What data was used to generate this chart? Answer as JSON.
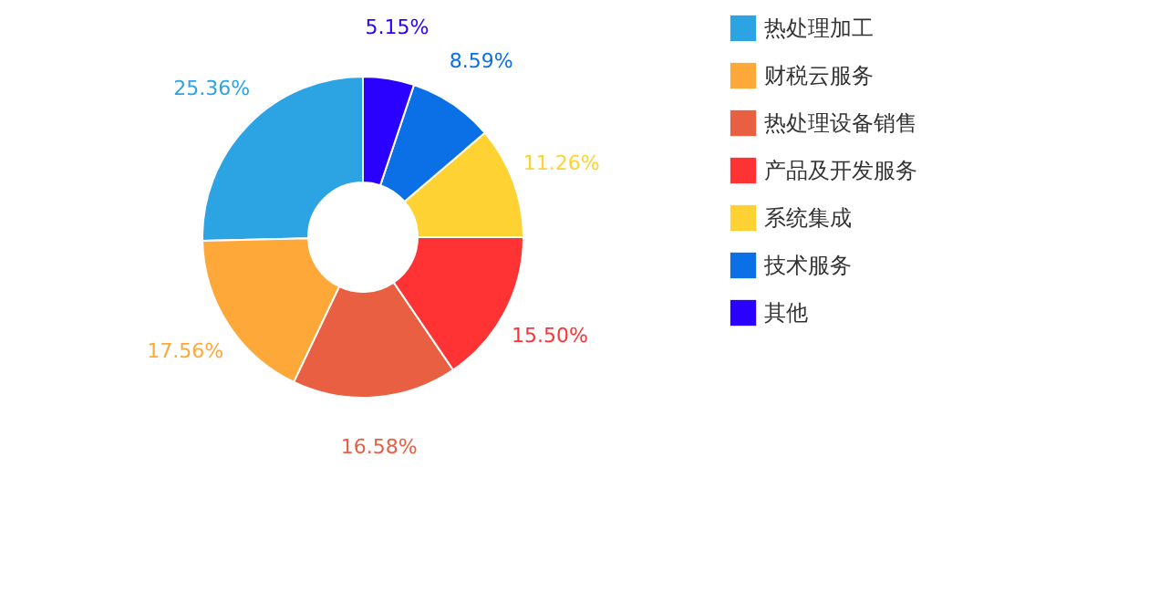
{
  "chart_data": {
    "type": "donut",
    "categories": [
      "热处理加工",
      "财税云服务",
      "热处理设备销售",
      "产品及开发服务",
      "系统集成",
      "技术服务",
      "其他"
    ],
    "values": [
      25.36,
      17.56,
      16.58,
      15.5,
      11.26,
      8.59,
      5.15
    ],
    "value_labels": [
      "25.36%",
      "17.56%",
      "16.58%",
      "15.50%",
      "11.26%",
      "8.59%",
      "5.15%"
    ],
    "colors": [
      "#2ca3e3",
      "#ffa83a",
      "#e85f42",
      "#ff3333",
      "#ffd234",
      "#0b6fe6",
      "#2a00ff"
    ],
    "legend": "right"
  }
}
